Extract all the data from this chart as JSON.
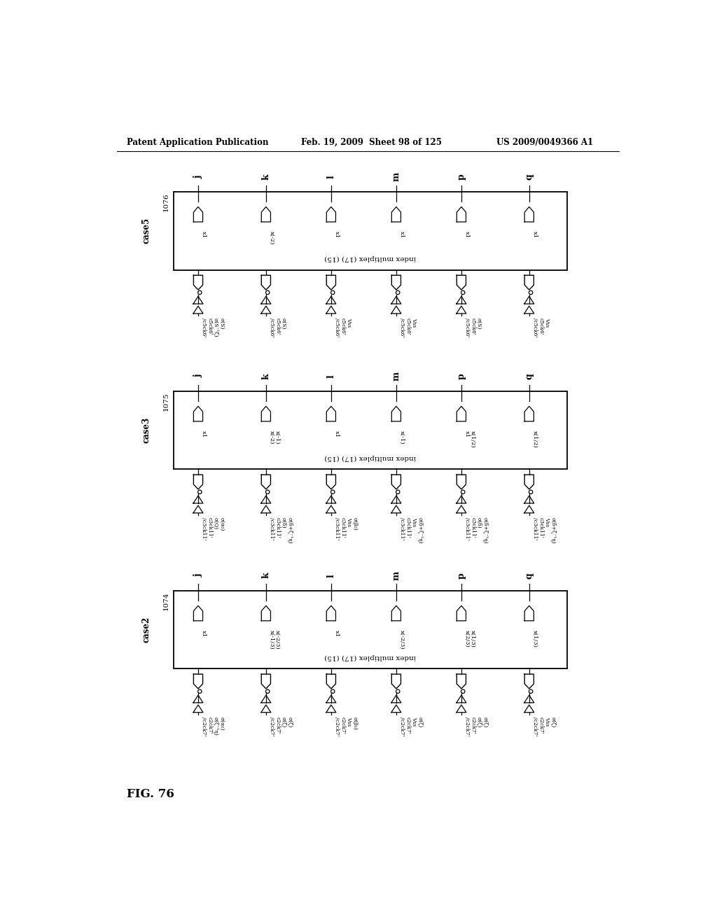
{
  "header_left": "Patent Application Publication",
  "header_mid": "Feb. 19, 2009  Sheet 98 of 125",
  "header_right": "US 2009/0049366 A1",
  "fig_label": "FIG. 76",
  "sections": [
    {
      "case_label": "case5",
      "box_label": "1076",
      "box_text": "index multiplex (17) (15)",
      "col_labels": [
        "j",
        "k",
        "l",
        "m",
        "p",
        "q"
      ],
      "mux_labels": [
        "x1",
        "x(-2)",
        "x1",
        "x1",
        "x1",
        "x1"
      ],
      "mux_double": [
        false,
        false,
        false,
        false,
        false,
        false
      ],
      "bottom_ck": [
        "/c5ck6'",
        "c5ck6'"
      ],
      "bottom_sigma": [
        [
          "σ(S⁻¹ζ)",
          "σ(S)"
        ],
        [
          "σ(S)",
          ""
        ],
        [
          "Vss",
          ""
        ],
        [
          "Vss",
          ""
        ],
        [
          "σ(S)",
          ""
        ],
        [
          "Vss",
          ""
        ]
      ],
      "bottom_has_double_mux": [
        true,
        true,
        false,
        false,
        false,
        false
      ]
    },
    {
      "case_label": "case3",
      "box_label": "1075",
      "box_text": "index multiplex (17) (15)",
      "col_labels": [
        "j",
        "k",
        "l",
        "m",
        "p",
        "q"
      ],
      "mux_labels": [
        "x1",
        "x(-2)\nx(-1)",
        "x1",
        "x(-1)",
        "x1\nx(1/2)",
        "x(1/2)"
      ],
      "mux_double": [
        false,
        true,
        false,
        false,
        true,
        false
      ],
      "bottom_ck": [
        "/c3ck11'",
        "c3ck11'"
      ],
      "bottom_sigma": [
        [
          "σ(Q)",
          "σ(α₀)"
        ],
        [
          "σ(δ)",
          "σ(δ+ζ⁻¹η)"
        ],
        [
          "Vss",
          "σ(β₀)"
        ],
        [
          "Vss",
          "σ(δ+ζ⁻¹η)"
        ],
        [
          "σ(δ)",
          "σ(δ+ζ⁻¹η)"
        ],
        [
          "Vss",
          "σ(δ+ζ⁻¹η)"
        ]
      ],
      "bottom_has_double_mux": [
        true,
        true,
        false,
        false,
        false,
        false
      ]
    },
    {
      "case_label": "case2",
      "box_label": "1074",
      "box_text": "index multiplex (17) (15)",
      "col_labels": [
        "j",
        "k",
        "l",
        "m",
        "p",
        "q"
      ],
      "mux_labels": [
        "x1",
        "x(-1/3)\nx(-2/3)",
        "x1",
        "x(-2/3)",
        "x(2/3)\nx(1/3)",
        "x(1/3)"
      ],
      "mux_double": [
        false,
        true,
        false,
        false,
        true,
        false
      ],
      "bottom_ck": [
        "/c2ck7'",
        "c2ck7'"
      ],
      "bottom_sigma": [
        [
          "σ(ζ⁻¹η)",
          "σ(α₀)"
        ],
        [
          "σ(ζ)",
          "σ(ζ)"
        ],
        [
          "Vss",
          "σ(β₀)"
        ],
        [
          "Vss",
          "σ(ζ)"
        ],
        [
          "σ(ζ)",
          "σ(ζ)"
        ],
        [
          "Vss",
          "σ(ζ)"
        ]
      ],
      "bottom_has_double_mux": [
        true,
        true,
        false,
        false,
        false,
        false
      ]
    }
  ]
}
